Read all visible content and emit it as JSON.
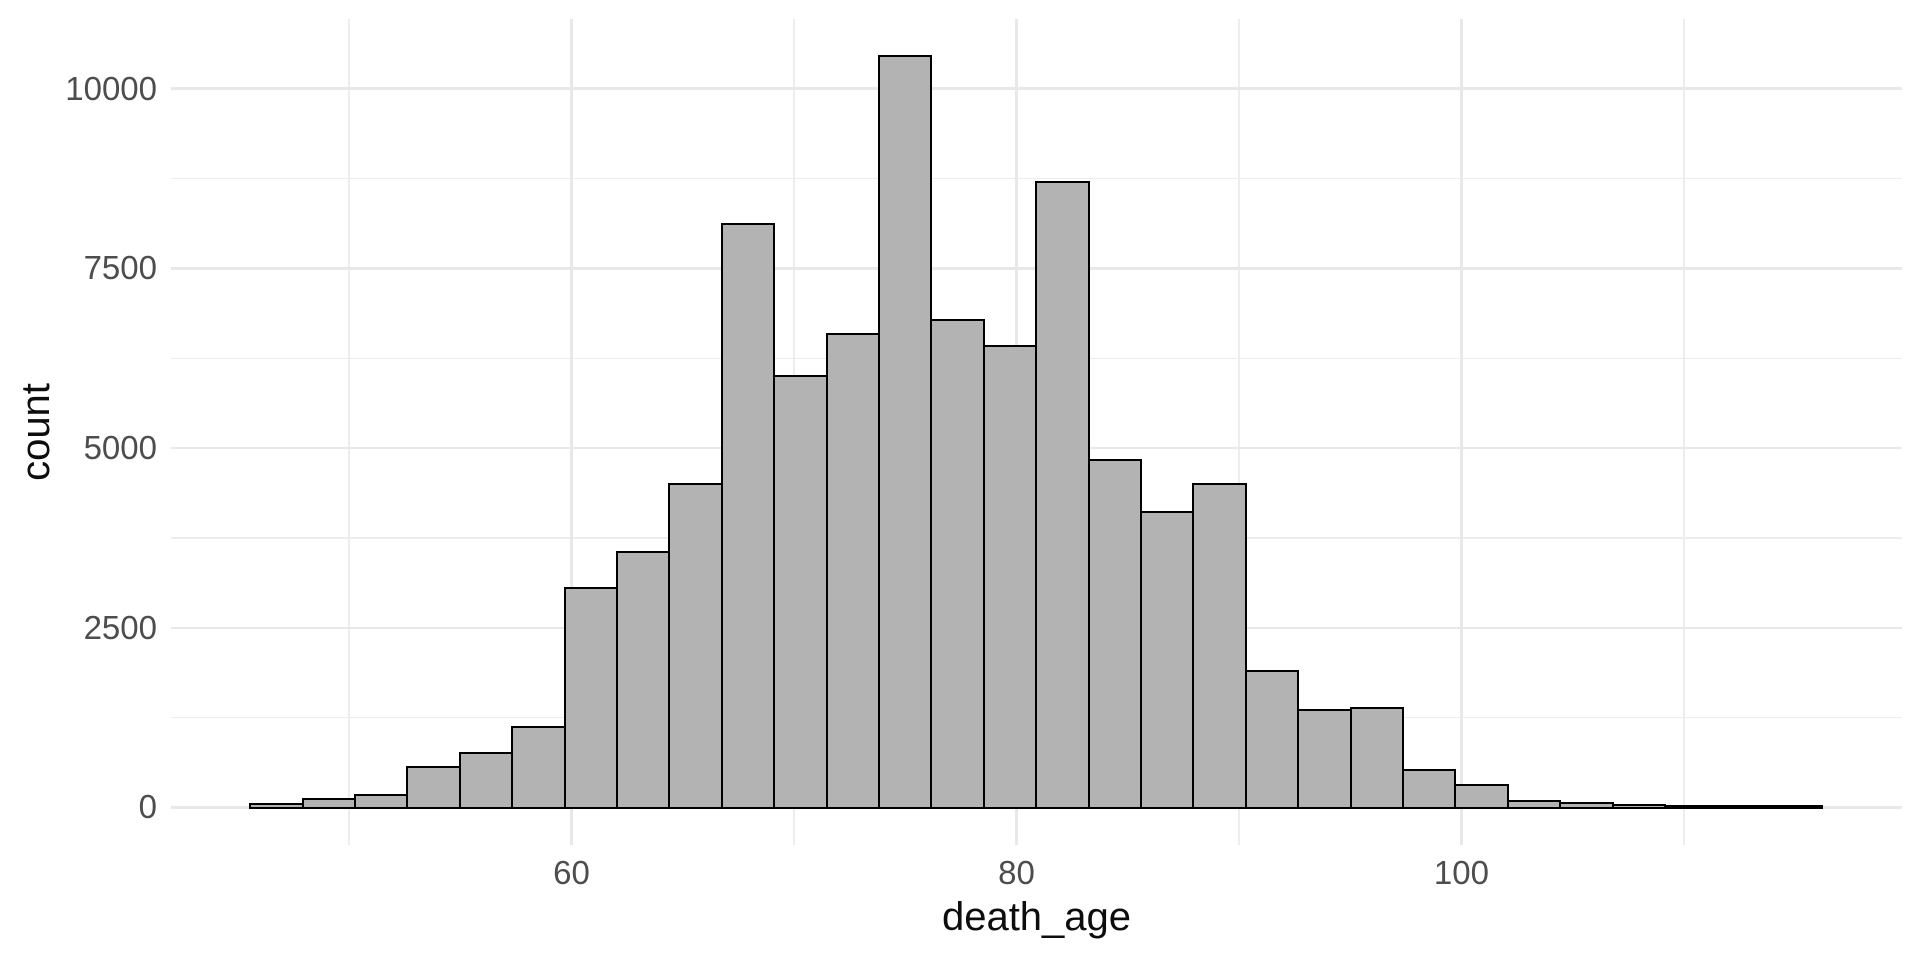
{
  "figure": {
    "background": "#ffffff",
    "description": "Histogram of death_age"
  },
  "chart_data": {
    "type": "bar",
    "subtype": "histogram",
    "title": "",
    "xlabel": "death_age",
    "ylabel": "count",
    "bin_start": 45.56,
    "bin_width": 2.3553,
    "counts": [
      30,
      100,
      165,
      555,
      745,
      1110,
      3040,
      3545,
      4490,
      8110,
      5990,
      6575,
      10445,
      6770,
      6410,
      8690,
      4825,
      4100,
      4490,
      1890,
      1345,
      1375,
      510,
      300,
      80,
      45,
      25,
      12,
      8,
      5
    ],
    "xlim": [
      42.0,
      119.8
    ],
    "ylim": [
      -522,
      10969
    ],
    "x_ticks": {
      "values": [
        60,
        80,
        100
      ],
      "labels": [
        "60",
        "80",
        "100"
      ],
      "minor": [
        50,
        70,
        90,
        110
      ]
    },
    "y_ticks": {
      "values": [
        0,
        2500,
        5000,
        7500,
        10000
      ],
      "labels": [
        "0",
        "2500",
        "5000",
        "7500",
        "10000"
      ],
      "minor": [
        1250,
        3750,
        6250,
        8750
      ]
    },
    "grid": "on",
    "legend": "none",
    "colors": {
      "bar_fill": "#b3b3b3",
      "bar_stroke": "#000000",
      "grid_major": "#e8e8e8",
      "grid_minor": "#ededed",
      "tick_text": "#4d4d4d",
      "title_text": "#0d0d0d",
      "background": "#ffffff"
    }
  }
}
